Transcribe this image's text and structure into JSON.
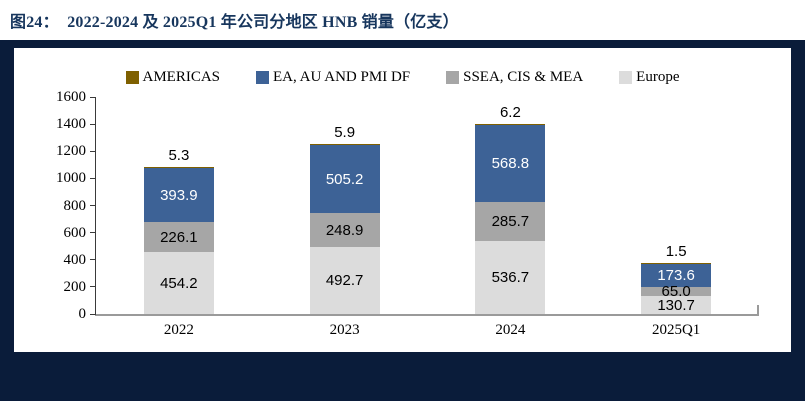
{
  "header": {
    "title": "图24：  2022-2024 及 2025Q1 年公司分地区 HNB 销量（亿支）",
    "title_color": "#17365D"
  },
  "panel": {
    "background_color": "#0A1C3A",
    "card_background_color": "#FFFFFF"
  },
  "chart_data": {
    "type": "bar",
    "stacked": true,
    "title": "",
    "xlabel": "",
    "ylabel": "",
    "categories": [
      "2022",
      "2023",
      "2024",
      "2025Q1"
    ],
    "series": [
      {
        "name": "AMERICAS",
        "color": "#7F6000",
        "values": [
          5.3,
          5.9,
          6.2,
          1.5
        ],
        "label_position": "above",
        "label_color": "#000000"
      },
      {
        "name": "EA, AU AND PMI DF",
        "color": "#3D6296",
        "values": [
          393.9,
          505.2,
          568.8,
          173.6
        ],
        "label_position": "inside",
        "label_color": "#FFFFFF"
      },
      {
        "name": "SSEA, CIS & MEA",
        "color": "#A6A6A6",
        "values": [
          226.1,
          248.9,
          285.7,
          65.0
        ],
        "label_position": "inside",
        "label_color": "#000000"
      },
      {
        "name": "Europe",
        "color": "#DCDCDC",
        "values": [
          454.2,
          492.7,
          536.7,
          130.7
        ],
        "label_position": "inside",
        "label_color": "#000000"
      }
    ],
    "stack_order_bottom_to_top": [
      "Europe",
      "SSEA, CIS & MEA",
      "EA, AU AND PMI DF",
      "AMERICAS"
    ],
    "totals_label_above_bar": [
      5.3,
      5.9,
      6.2,
      1.5
    ],
    "ylim": [
      0,
      1600
    ],
    "yticks": [
      0,
      200,
      400,
      600,
      800,
      1000,
      1200,
      1400,
      1600
    ],
    "grid": false,
    "legend_position": "top",
    "value_label_decimals": 1
  }
}
